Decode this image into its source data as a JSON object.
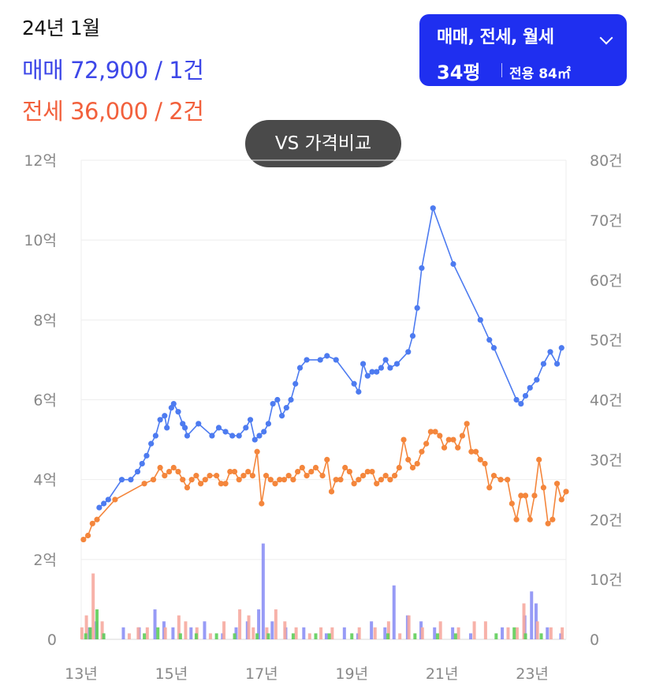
{
  "header": {
    "date": "24년 1월",
    "sale_line": "매매 72,900 / 1건",
    "rent_line": "전세 36,000 / 2건"
  },
  "filter": {
    "types_label": "매매, 전세, 월세",
    "size_label": "34평",
    "area_label": "전용 84㎡",
    "icon": "chevron-down-icon"
  },
  "compare_button": {
    "label": "VS 가격비교"
  },
  "colors": {
    "sale": "#4d7bf0",
    "rent": "#f4863c",
    "vol_sale": "#8c90f5",
    "vol_rent": "#f6aaa0",
    "vol_monthly": "#5fce5a",
    "button_bg": "#1f2ff0"
  },
  "chart_data": {
    "type": "line",
    "y_left": {
      "unit": "억",
      "min": 0,
      "max": 12,
      "ticks": [
        "0",
        "2억",
        "4억",
        "6억",
        "8억",
        "10억",
        "12억"
      ]
    },
    "y_right": {
      "unit": "건",
      "min": 0,
      "max": 80,
      "ticks": [
        "0",
        "10건",
        "20건",
        "30건",
        "40건",
        "50건",
        "60건",
        "70건",
        "80건"
      ]
    },
    "x_ticks": [
      "13년",
      "15년",
      "17년",
      "19년",
      "21년",
      "23년"
    ],
    "x_range": [
      2013.0,
      2023.75
    ],
    "grid": true,
    "series": [
      {
        "kind": "price-sale",
        "points": [
          [
            2013.4,
            3.3
          ],
          [
            2013.5,
            3.4
          ],
          [
            2013.6,
            3.5
          ],
          [
            2013.9,
            4.0
          ],
          [
            2014.1,
            4.0
          ],
          [
            2014.25,
            4.2
          ],
          [
            2014.35,
            4.4
          ],
          [
            2014.45,
            4.6
          ],
          [
            2014.55,
            4.9
          ],
          [
            2014.65,
            5.1
          ],
          [
            2014.75,
            5.5
          ],
          [
            2014.85,
            5.6
          ],
          [
            2014.9,
            5.3
          ],
          [
            2015.0,
            5.8
          ],
          [
            2015.05,
            5.9
          ],
          [
            2015.15,
            5.7
          ],
          [
            2015.25,
            5.4
          ],
          [
            2015.3,
            5.3
          ],
          [
            2015.35,
            5.1
          ],
          [
            2015.6,
            5.4
          ],
          [
            2015.9,
            5.1
          ],
          [
            2016.05,
            5.3
          ],
          [
            2016.2,
            5.2
          ],
          [
            2016.35,
            5.1
          ],
          [
            2016.5,
            5.1
          ],
          [
            2016.65,
            5.3
          ],
          [
            2016.75,
            5.5
          ],
          [
            2016.85,
            5.0
          ],
          [
            2016.95,
            5.1
          ],
          [
            2017.05,
            5.2
          ],
          [
            2017.15,
            5.4
          ],
          [
            2017.25,
            5.9
          ],
          [
            2017.35,
            6.0
          ],
          [
            2017.45,
            5.6
          ],
          [
            2017.55,
            5.8
          ],
          [
            2017.65,
            6.0
          ],
          [
            2017.75,
            6.4
          ],
          [
            2017.85,
            6.8
          ],
          [
            2018.0,
            7.0
          ],
          [
            2018.3,
            7.0
          ],
          [
            2018.45,
            7.1
          ],
          [
            2018.65,
            7.0
          ],
          [
            2019.05,
            6.4
          ],
          [
            2019.15,
            6.2
          ],
          [
            2019.25,
            6.9
          ],
          [
            2019.35,
            6.6
          ],
          [
            2019.45,
            6.7
          ],
          [
            2019.55,
            6.7
          ],
          [
            2019.65,
            6.8
          ],
          [
            2019.75,
            7.0
          ],
          [
            2019.85,
            6.8
          ],
          [
            2020.0,
            6.9
          ],
          [
            2020.25,
            7.2
          ],
          [
            2020.35,
            7.6
          ],
          [
            2020.45,
            8.3
          ],
          [
            2020.55,
            9.3
          ],
          [
            2020.8,
            10.8
          ],
          [
            2021.25,
            9.4
          ],
          [
            2021.85,
            8.0
          ],
          [
            2022.05,
            7.5
          ],
          [
            2022.15,
            7.3
          ],
          [
            2022.65,
            6.0
          ],
          [
            2022.75,
            5.9
          ],
          [
            2022.85,
            6.1
          ],
          [
            2022.95,
            6.3
          ],
          [
            2023.1,
            6.5
          ],
          [
            2023.25,
            6.9
          ],
          [
            2023.4,
            7.2
          ],
          [
            2023.55,
            6.9
          ],
          [
            2023.65,
            7.3
          ]
        ]
      },
      {
        "kind": "price-rent",
        "points": [
          [
            2013.05,
            2.5
          ],
          [
            2013.15,
            2.6
          ],
          [
            2013.25,
            2.9
          ],
          [
            2013.35,
            3.0
          ],
          [
            2013.75,
            3.5
          ],
          [
            2014.4,
            3.9
          ],
          [
            2014.6,
            4.0
          ],
          [
            2014.75,
            4.3
          ],
          [
            2014.85,
            4.1
          ],
          [
            2014.95,
            4.2
          ],
          [
            2015.05,
            4.3
          ],
          [
            2015.15,
            4.2
          ],
          [
            2015.25,
            4.0
          ],
          [
            2015.35,
            3.8
          ],
          [
            2015.45,
            4.0
          ],
          [
            2015.55,
            4.1
          ],
          [
            2015.65,
            3.9
          ],
          [
            2015.75,
            4.0
          ],
          [
            2015.85,
            4.1
          ],
          [
            2016.0,
            4.1
          ],
          [
            2016.1,
            3.9
          ],
          [
            2016.2,
            3.9
          ],
          [
            2016.3,
            4.2
          ],
          [
            2016.4,
            4.2
          ],
          [
            2016.5,
            4.0
          ],
          [
            2016.6,
            4.1
          ],
          [
            2016.7,
            4.2
          ],
          [
            2016.8,
            4.1
          ],
          [
            2016.9,
            4.7
          ],
          [
            2017.0,
            3.4
          ],
          [
            2017.1,
            4.1
          ],
          [
            2017.2,
            4.0
          ],
          [
            2017.3,
            3.9
          ],
          [
            2017.4,
            4.0
          ],
          [
            2017.5,
            4.0
          ],
          [
            2017.6,
            4.1
          ],
          [
            2017.7,
            4.0
          ],
          [
            2017.8,
            4.2
          ],
          [
            2017.9,
            4.3
          ],
          [
            2018.0,
            4.1
          ],
          [
            2018.1,
            4.2
          ],
          [
            2018.2,
            4.3
          ],
          [
            2018.35,
            4.1
          ],
          [
            2018.45,
            4.5
          ],
          [
            2018.55,
            3.7
          ],
          [
            2018.65,
            4.0
          ],
          [
            2018.75,
            4.0
          ],
          [
            2018.85,
            4.3
          ],
          [
            2018.95,
            4.2
          ],
          [
            2019.05,
            3.9
          ],
          [
            2019.15,
            4.0
          ],
          [
            2019.25,
            4.1
          ],
          [
            2019.35,
            4.2
          ],
          [
            2019.45,
            4.2
          ],
          [
            2019.55,
            3.9
          ],
          [
            2019.65,
            4.0
          ],
          [
            2019.75,
            4.1
          ],
          [
            2019.85,
            4.0
          ],
          [
            2019.95,
            4.1
          ],
          [
            2020.05,
            4.3
          ],
          [
            2020.15,
            5.0
          ],
          [
            2020.25,
            4.5
          ],
          [
            2020.35,
            4.3
          ],
          [
            2020.45,
            4.4
          ],
          [
            2020.55,
            4.7
          ],
          [
            2020.65,
            4.9
          ],
          [
            2020.75,
            5.2
          ],
          [
            2020.85,
            5.2
          ],
          [
            2020.95,
            5.1
          ],
          [
            2021.05,
            4.8
          ],
          [
            2021.15,
            5.0
          ],
          [
            2021.25,
            5.0
          ],
          [
            2021.35,
            4.8
          ],
          [
            2021.45,
            5.1
          ],
          [
            2021.55,
            5.4
          ],
          [
            2021.65,
            4.7
          ],
          [
            2021.75,
            4.7
          ],
          [
            2021.85,
            4.5
          ],
          [
            2021.95,
            4.4
          ],
          [
            2022.05,
            3.8
          ],
          [
            2022.15,
            4.1
          ],
          [
            2022.3,
            4.0
          ],
          [
            2022.45,
            4.0
          ],
          [
            2022.55,
            3.4
          ],
          [
            2022.65,
            3.0
          ],
          [
            2022.75,
            3.6
          ],
          [
            2022.85,
            3.6
          ],
          [
            2022.95,
            3.0
          ],
          [
            2023.05,
            3.6
          ],
          [
            2023.15,
            4.5
          ],
          [
            2023.25,
            3.8
          ],
          [
            2023.35,
            2.9
          ],
          [
            2023.45,
            3.0
          ],
          [
            2023.55,
            3.9
          ],
          [
            2023.65,
            3.5
          ],
          [
            2023.75,
            3.7
          ]
        ]
      }
    ],
    "volume_series": [
      {
        "kind": "vol-sale",
        "points": [
          [
            2013.15,
            2
          ],
          [
            2013.3,
            3
          ],
          [
            2013.45,
            1
          ],
          [
            2013.9,
            2
          ],
          [
            2014.25,
            2
          ],
          [
            2014.6,
            5
          ],
          [
            2014.8,
            3
          ],
          [
            2015.0,
            2
          ],
          [
            2015.4,
            2
          ],
          [
            2015.7,
            3
          ],
          [
            2016.1,
            1
          ],
          [
            2016.4,
            2
          ],
          [
            2016.65,
            3
          ],
          [
            2016.9,
            5
          ],
          [
            2017.0,
            16
          ],
          [
            2017.2,
            3
          ],
          [
            2017.5,
            2
          ],
          [
            2017.9,
            2
          ],
          [
            2018.4,
            1
          ],
          [
            2018.8,
            2
          ],
          [
            2019.1,
            1
          ],
          [
            2019.4,
            3
          ],
          [
            2019.7,
            2
          ],
          [
            2019.9,
            9
          ],
          [
            2020.2,
            4
          ],
          [
            2020.5,
            3
          ],
          [
            2020.8,
            2
          ],
          [
            2021.2,
            2
          ],
          [
            2021.6,
            1
          ],
          [
            2022.3,
            2
          ],
          [
            2022.8,
            4
          ],
          [
            2022.95,
            8
          ],
          [
            2023.05,
            6
          ],
          [
            2023.3,
            2
          ],
          [
            2023.6,
            1
          ]
        ]
      },
      {
        "kind": "vol-rent",
        "points": [
          [
            2013.05,
            2
          ],
          [
            2013.15,
            4
          ],
          [
            2013.3,
            11
          ],
          [
            2013.5,
            3
          ],
          [
            2014.1,
            1
          ],
          [
            2014.3,
            2
          ],
          [
            2014.5,
            2
          ],
          [
            2014.9,
            2
          ],
          [
            2015.2,
            4
          ],
          [
            2015.35,
            3
          ],
          [
            2015.6,
            2
          ],
          [
            2015.9,
            1
          ],
          [
            2016.2,
            3
          ],
          [
            2016.55,
            5
          ],
          [
            2016.75,
            4
          ],
          [
            2016.85,
            2
          ],
          [
            2017.15,
            2
          ],
          [
            2017.35,
            5
          ],
          [
            2017.55,
            3
          ],
          [
            2017.8,
            2
          ],
          [
            2018.1,
            1
          ],
          [
            2018.35,
            2
          ],
          [
            2018.6,
            2
          ],
          [
            2019.2,
            2
          ],
          [
            2019.55,
            2
          ],
          [
            2019.85,
            3
          ],
          [
            2020.1,
            1
          ],
          [
            2020.3,
            4
          ],
          [
            2020.6,
            2
          ],
          [
            2021.0,
            3
          ],
          [
            2021.4,
            2
          ],
          [
            2021.75,
            3
          ],
          [
            2022.0,
            3
          ],
          [
            2022.5,
            2
          ],
          [
            2022.7,
            2
          ],
          [
            2022.85,
            6
          ],
          [
            2023.15,
            3
          ],
          [
            2023.45,
            2
          ],
          [
            2023.7,
            2
          ]
        ]
      },
      {
        "kind": "vol-monthly",
        "points": [
          [
            2013.1,
            1
          ],
          [
            2013.2,
            2
          ],
          [
            2013.35,
            5
          ],
          [
            2013.5,
            1
          ],
          [
            2014.4,
            1
          ],
          [
            2014.7,
            2
          ],
          [
            2015.2,
            1
          ],
          [
            2015.55,
            1
          ],
          [
            2016.0,
            1
          ],
          [
            2016.4,
            1
          ],
          [
            2016.9,
            1
          ],
          [
            2017.15,
            1
          ],
          [
            2017.7,
            1
          ],
          [
            2018.2,
            1
          ],
          [
            2018.5,
            1
          ],
          [
            2019.0,
            1
          ],
          [
            2019.8,
            1
          ],
          [
            2020.4,
            1
          ],
          [
            2020.9,
            1
          ],
          [
            2021.3,
            1
          ],
          [
            2022.2,
            1
          ],
          [
            2022.6,
            2
          ],
          [
            2022.85,
            1
          ],
          [
            2023.2,
            1
          ]
        ]
      }
    ]
  }
}
